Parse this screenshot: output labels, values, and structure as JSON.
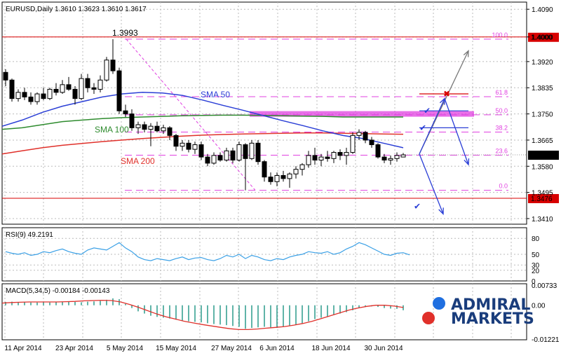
{
  "header": {
    "symbol_title": "EURUSD,Daily  1.3610 1.3623 1.3610 1.3617",
    "rsi_title": "RSI(9) 49.2191",
    "macd_title": "MACD(5,34,5) -0.00184 -0.00143"
  },
  "labels": {
    "high_label": "1.3993",
    "sma50": "SMA 50",
    "sma100": "SMA 100",
    "sma200": "SMA 200"
  },
  "logo": {
    "line1": "ADMIRAL",
    "line2": "MARKETS"
  },
  "colors": {
    "up_candle": "#ffffff",
    "down_candle": "#000000",
    "sma50": "#2b3fd6",
    "sma100": "#2e8b2e",
    "sma200": "#e0302a",
    "fib": "#e040e0",
    "price_box": "#d80000",
    "rsi_line": "#3aa0e6",
    "macd_signal": "#e0302a",
    "macd_hist": "#2a9a8a",
    "logo_blue": "#1f6fe0",
    "logo_red": "#e0302a"
  },
  "chart_data": [
    {
      "type": "candlestick",
      "title": "EURUSD,Daily",
      "ylim": [
        1.341,
        1.4095
      ],
      "yticks": [
        "1.4090",
        "1.4000",
        "1.3920",
        "1.3835",
        "1.3750",
        "1.3665",
        "1.3580",
        "1.3495",
        "1.3410"
      ],
      "xticks": [
        "11 Apr 2014",
        "23 Apr 2014",
        "5 May 2014",
        "15 May 2014",
        "27 May 2014",
        "6 Jun 2014",
        "18 Jun 2014",
        "30 Jun 2014"
      ],
      "current_price": "1.3617",
      "levels": [
        {
          "label": "1.4000",
          "value": 1.4,
          "kind": "resistance"
        },
        {
          "label": "1.3476",
          "value": 1.3476,
          "kind": "support"
        }
      ],
      "fibonacci": [
        {
          "label": "100.0",
          "value": 1.3993
        },
        {
          "label": "61.8",
          "value": 1.3806
        },
        {
          "label": "50.0",
          "value": 1.3747
        },
        {
          "label": "38.2",
          "value": 1.3691
        },
        {
          "label": "23.6",
          "value": 1.3616
        },
        {
          "label": "0.0",
          "value": 1.3502
        }
      ],
      "candles": [
        {
          "o": 1.3885,
          "h": 1.3895,
          "l": 1.384,
          "c": 1.386
        },
        {
          "o": 1.386,
          "h": 1.3865,
          "l": 1.379,
          "c": 1.38
        },
        {
          "o": 1.38,
          "h": 1.383,
          "l": 1.379,
          "c": 1.382
        },
        {
          "o": 1.382,
          "h": 1.3835,
          "l": 1.3795,
          "c": 1.3805
        },
        {
          "o": 1.3805,
          "h": 1.382,
          "l": 1.378,
          "c": 1.379
        },
        {
          "o": 1.379,
          "h": 1.382,
          "l": 1.378,
          "c": 1.3815
        },
        {
          "o": 1.3815,
          "h": 1.3835,
          "l": 1.3795,
          "c": 1.38
        },
        {
          "o": 1.38,
          "h": 1.3835,
          "l": 1.3795,
          "c": 1.383
        },
        {
          "o": 1.383,
          "h": 1.385,
          "l": 1.381,
          "c": 1.382
        },
        {
          "o": 1.382,
          "h": 1.386,
          "l": 1.3815,
          "c": 1.3845
        },
        {
          "o": 1.3845,
          "h": 1.387,
          "l": 1.3825,
          "c": 1.383
        },
        {
          "o": 1.383,
          "h": 1.384,
          "l": 1.378,
          "c": 1.38
        },
        {
          "o": 1.38,
          "h": 1.388,
          "l": 1.3795,
          "c": 1.3865
        },
        {
          "o": 1.3865,
          "h": 1.388,
          "l": 1.382,
          "c": 1.3835
        },
        {
          "o": 1.3835,
          "h": 1.385,
          "l": 1.3815,
          "c": 1.383
        },
        {
          "o": 1.383,
          "h": 1.3875,
          "l": 1.382,
          "c": 1.386
        },
        {
          "o": 1.386,
          "h": 1.3935,
          "l": 1.3855,
          "c": 1.3925
        },
        {
          "o": 1.3925,
          "h": 1.3993,
          "l": 1.388,
          "c": 1.389
        },
        {
          "o": 1.389,
          "h": 1.39,
          "l": 1.375,
          "c": 1.376
        },
        {
          "o": 1.376,
          "h": 1.378,
          "l": 1.374,
          "c": 1.375
        },
        {
          "o": 1.375,
          "h": 1.3765,
          "l": 1.3695,
          "c": 1.3705
        },
        {
          "o": 1.3705,
          "h": 1.3725,
          "l": 1.3685,
          "c": 1.3715
        },
        {
          "o": 1.3715,
          "h": 1.3725,
          "l": 1.369,
          "c": 1.37
        },
        {
          "o": 1.37,
          "h": 1.372,
          "l": 1.3645,
          "c": 1.371
        },
        {
          "o": 1.371,
          "h": 1.3725,
          "l": 1.369,
          "c": 1.3695
        },
        {
          "o": 1.3695,
          "h": 1.3715,
          "l": 1.3685,
          "c": 1.3705
        },
        {
          "o": 1.3705,
          "h": 1.371,
          "l": 1.3665,
          "c": 1.368
        },
        {
          "o": 1.368,
          "h": 1.3685,
          "l": 1.363,
          "c": 1.3645
        },
        {
          "o": 1.3645,
          "h": 1.3665,
          "l": 1.363,
          "c": 1.3655
        },
        {
          "o": 1.3655,
          "h": 1.3665,
          "l": 1.3625,
          "c": 1.3635
        },
        {
          "o": 1.3635,
          "h": 1.366,
          "l": 1.362,
          "c": 1.365
        },
        {
          "o": 1.365,
          "h": 1.366,
          "l": 1.36,
          "c": 1.361
        },
        {
          "o": 1.361,
          "h": 1.362,
          "l": 1.358,
          "c": 1.359
        },
        {
          "o": 1.359,
          "h": 1.3625,
          "l": 1.3585,
          "c": 1.3615
        },
        {
          "o": 1.3615,
          "h": 1.3625,
          "l": 1.3595,
          "c": 1.36
        },
        {
          "o": 1.36,
          "h": 1.364,
          "l": 1.3595,
          "c": 1.363
        },
        {
          "o": 1.363,
          "h": 1.364,
          "l": 1.359,
          "c": 1.36
        },
        {
          "o": 1.36,
          "h": 1.366,
          "l": 1.3595,
          "c": 1.365
        },
        {
          "o": 1.365,
          "h": 1.3655,
          "l": 1.3502,
          "c": 1.3605
        },
        {
          "o": 1.3605,
          "h": 1.3665,
          "l": 1.36,
          "c": 1.3655
        },
        {
          "o": 1.3655,
          "h": 1.3665,
          "l": 1.3585,
          "c": 1.3595
        },
        {
          "o": 1.3595,
          "h": 1.36,
          "l": 1.353,
          "c": 1.3545
        },
        {
          "o": 1.3545,
          "h": 1.356,
          "l": 1.352,
          "c": 1.353
        },
        {
          "o": 1.353,
          "h": 1.356,
          "l": 1.3515,
          "c": 1.355
        },
        {
          "o": 1.355,
          "h": 1.3565,
          "l": 1.353,
          "c": 1.354
        },
        {
          "o": 1.354,
          "h": 1.356,
          "l": 1.351,
          "c": 1.3555
        },
        {
          "o": 1.3555,
          "h": 1.358,
          "l": 1.354,
          "c": 1.357
        },
        {
          "o": 1.357,
          "h": 1.359,
          "l": 1.355,
          "c": 1.3585
        },
        {
          "o": 1.3585,
          "h": 1.363,
          "l": 1.3575,
          "c": 1.3615
        },
        {
          "o": 1.3615,
          "h": 1.364,
          "l": 1.3585,
          "c": 1.36
        },
        {
          "o": 1.36,
          "h": 1.362,
          "l": 1.358,
          "c": 1.361
        },
        {
          "o": 1.361,
          "h": 1.363,
          "l": 1.3595,
          "c": 1.3605
        },
        {
          "o": 1.3605,
          "h": 1.363,
          "l": 1.359,
          "c": 1.3625
        },
        {
          "o": 1.3625,
          "h": 1.3635,
          "l": 1.36,
          "c": 1.3615
        },
        {
          "o": 1.3615,
          "h": 1.364,
          "l": 1.3585,
          "c": 1.3625
        },
        {
          "o": 1.3625,
          "h": 1.369,
          "l": 1.362,
          "c": 1.368
        },
        {
          "o": 1.368,
          "h": 1.37,
          "l": 1.3665,
          "c": 1.369
        },
        {
          "o": 1.369,
          "h": 1.3695,
          "l": 1.3655,
          "c": 1.3665
        },
        {
          "o": 1.3665,
          "h": 1.3675,
          "l": 1.364,
          "c": 1.365
        },
        {
          "o": 1.365,
          "h": 1.3655,
          "l": 1.3605,
          "c": 1.361
        },
        {
          "o": 1.361,
          "h": 1.362,
          "l": 1.359,
          "c": 1.36
        },
        {
          "o": 1.36,
          "h": 1.3615,
          "l": 1.3585,
          "c": 1.3605
        },
        {
          "o": 1.3605,
          "h": 1.3625,
          "l": 1.3595,
          "c": 1.3615
        },
        {
          "o": 1.361,
          "h": 1.3623,
          "l": 1.361,
          "c": 1.3617
        }
      ],
      "sma50": [
        1.371,
        1.373,
        1.3755,
        1.3775,
        1.379,
        1.3805,
        1.3815,
        1.382,
        1.3818,
        1.381,
        1.3795,
        1.3778,
        1.3762,
        1.3745,
        1.3728,
        1.3712,
        1.3695,
        1.368,
        1.367,
        1.3655,
        1.364
      ],
      "sma100": [
        1.37,
        1.3705,
        1.3715,
        1.3725,
        1.373,
        1.3735,
        1.3738,
        1.374,
        1.3742,
        1.3744,
        1.3745,
        1.3746,
        1.3746,
        1.3745,
        1.3744,
        1.3743,
        1.3742,
        1.374,
        1.374,
        1.374,
        1.374
      ],
      "sma200": [
        1.362,
        1.363,
        1.364,
        1.3648,
        1.3654,
        1.366,
        1.3665,
        1.367,
        1.3674,
        1.3678,
        1.3681,
        1.3683,
        1.3685,
        1.3686,
        1.3687,
        1.3688,
        1.3688,
        1.3687,
        1.3686,
        1.3685,
        1.3684
      ],
      "annotations": [
        {
          "kind": "check",
          "value": 1.376,
          "label": "✔"
        },
        {
          "kind": "check",
          "value": 1.3705,
          "label": "✔"
        },
        {
          "kind": "check",
          "value": 1.345,
          "label": "✔"
        },
        {
          "kind": "cross",
          "value": 1.3815,
          "label": "✖"
        }
      ]
    },
    {
      "type": "line",
      "title": "RSI(9)",
      "ylim": [
        0,
        100
      ],
      "yticks": [
        "80",
        "50",
        "30",
        "20",
        "0"
      ],
      "series": [
        {
          "values": [
            55,
            52,
            50,
            53,
            48,
            50,
            55,
            53,
            57,
            60,
            55,
            52,
            50,
            58,
            62,
            60,
            58,
            65,
            72,
            62,
            55,
            45,
            40,
            38,
            42,
            40,
            38,
            42,
            45,
            40,
            43,
            44,
            40,
            38,
            42,
            48,
            45,
            50,
            42,
            48,
            45,
            40,
            38,
            42,
            40,
            45,
            48,
            50,
            55,
            53,
            52,
            55,
            50,
            53,
            60,
            65,
            72,
            68,
            62,
            56,
            50,
            48,
            52,
            53,
            49
          ]
        }
      ]
    },
    {
      "type": "bar",
      "title": "MACD(5,34,5)",
      "ylim": [
        -0.0125,
        0.0078
      ],
      "yticks": [
        "0.00733",
        "0.00",
        "-0.01221"
      ],
      "series": [
        {
          "name": "histogram",
          "values": [
            0.0012,
            0.0013,
            0.0012,
            0.0011,
            0.001,
            0.001,
            0.0011,
            0.001,
            0.0011,
            0.0012,
            0.0013,
            0.0012,
            0.0011,
            0.0013,
            0.0014,
            0.0016,
            0.002,
            0.0025,
            0.0022,
            0.0005,
            -0.001,
            -0.0022,
            -0.003,
            -0.0038,
            -0.0042,
            -0.0045,
            -0.0048,
            -0.0052,
            -0.0055,
            -0.0058,
            -0.006,
            -0.0062,
            -0.0065,
            -0.0068,
            -0.007,
            -0.0072,
            -0.0075,
            -0.0078,
            -0.0085,
            -0.0082,
            -0.008,
            -0.0078,
            -0.008,
            -0.0082,
            -0.0078,
            -0.0075,
            -0.007,
            -0.0065,
            -0.0058,
            -0.005,
            -0.0045,
            -0.004,
            -0.0035,
            -0.003,
            -0.0025,
            -0.0018,
            -0.001,
            -0.0005,
            -0.0004,
            -0.0006,
            -0.001,
            -0.0012,
            -0.0013,
            -0.0018
          ]
        },
        {
          "name": "signal",
          "values": [
            0.0008,
            0.001,
            0.0011,
            0.0012,
            0.0012,
            0.0012,
            0.0012,
            0.0013,
            0.0014,
            0.0016,
            0.0017,
            0.0018,
            0.0017,
            0.0012,
            0.0003,
            -0.0008,
            -0.002,
            -0.0032,
            -0.0042,
            -0.005,
            -0.0058,
            -0.0064,
            -0.007,
            -0.0075,
            -0.008,
            -0.0085,
            -0.0088,
            -0.0088,
            -0.0086,
            -0.0083,
            -0.008,
            -0.0077,
            -0.0072,
            -0.0066,
            -0.0058,
            -0.0048,
            -0.0038,
            -0.0028,
            -0.0018,
            -0.001,
            -0.0004,
            0.0,
            0.0,
            -0.0003,
            -0.0008
          ]
        }
      ]
    }
  ]
}
